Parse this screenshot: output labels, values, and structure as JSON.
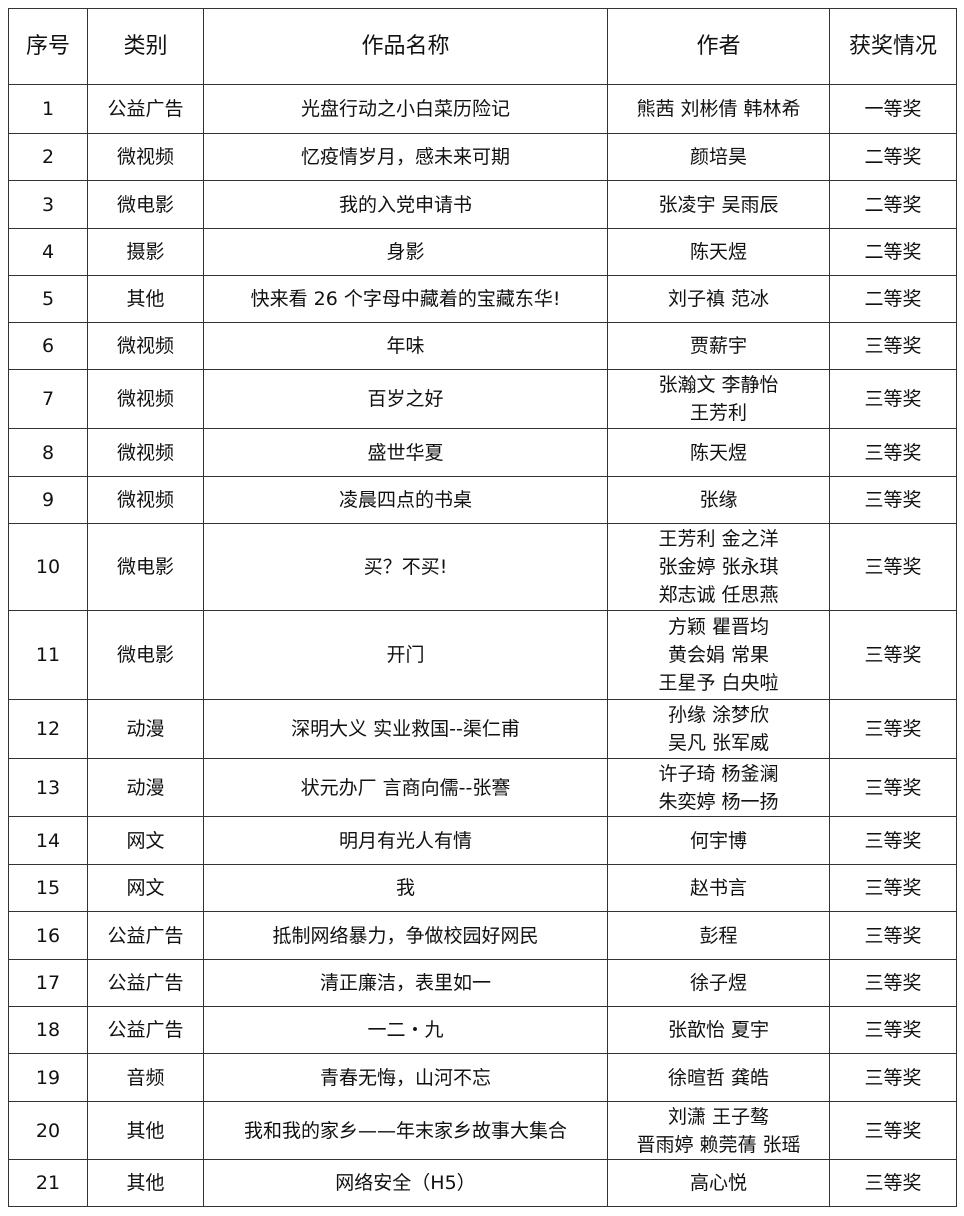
{
  "headers": [
    "序号",
    "类别",
    "作品名称",
    "作者",
    "获奖情况"
  ],
  "rows": [
    {
      "no": "1",
      "category": "公益广告",
      "title": "光盘行动之小白菜历险记",
      "authors": [
        "熊茜 刘彬倩 韩林希"
      ],
      "award": "一等奖"
    },
    {
      "no": "2",
      "category": "微视频",
      "title": "忆疫情岁月，感未来可期",
      "authors": [
        "颜培昊"
      ],
      "award": "二等奖"
    },
    {
      "no": "3",
      "category": "微电影",
      "title": "我的入党申请书",
      "authors": [
        "张凌宇 吴雨辰"
      ],
      "award": "二等奖"
    },
    {
      "no": "4",
      "category": "摄影",
      "title": "身影",
      "authors": [
        "陈天煜"
      ],
      "award": "二等奖"
    },
    {
      "no": "5",
      "category": "其他",
      "title": "快来看 26 个字母中藏着的宝藏东华!",
      "authors": [
        "刘子禛 范冰"
      ],
      "award": "二等奖"
    },
    {
      "no": "6",
      "category": "微视频",
      "title": "年味",
      "authors": [
        "贾薪宇"
      ],
      "award": "三等奖"
    },
    {
      "no": "7",
      "category": "微视频",
      "title": "百岁之好",
      "authors": [
        "张瀚文 李静怡",
        "王芳利"
      ],
      "award": "三等奖"
    },
    {
      "no": "8",
      "category": "微视频",
      "title": "盛世华夏",
      "authors": [
        "陈天煜"
      ],
      "award": "三等奖"
    },
    {
      "no": "9",
      "category": "微视频",
      "title": "凌晨四点的书桌",
      "authors": [
        "张缘"
      ],
      "award": "三等奖"
    },
    {
      "no": "10",
      "category": "微电影",
      "title": "买？不买!",
      "authors": [
        "王芳利 金之洋",
        "张金婷 张永琪",
        "郑志诚 任思燕"
      ],
      "award": "三等奖"
    },
    {
      "no": "11",
      "category": "微电影",
      "title": "开门",
      "authors": [
        "方颖 瞿晋均",
        "黄会娟 常果",
        "王星予 白央啦"
      ],
      "award": "三等奖"
    },
    {
      "no": "12",
      "category": "动漫",
      "title": "深明大义 实业救国--渠仁甫",
      "authors": [
        "孙缘 涂梦欣",
        "吴凡 张军威"
      ],
      "award": "三等奖"
    },
    {
      "no": "13",
      "category": "动漫",
      "title": "状元办厂 言商向儒--张謇",
      "authors": [
        "许子琦 杨釜澜",
        "朱奕婷 杨一扬"
      ],
      "award": "三等奖"
    },
    {
      "no": "14",
      "category": "网文",
      "title": "明月有光人有情",
      "authors": [
        "何宇博"
      ],
      "award": "三等奖"
    },
    {
      "no": "15",
      "category": "网文",
      "title": "我",
      "authors": [
        "赵书言"
      ],
      "award": "三等奖"
    },
    {
      "no": "16",
      "category": "公益广告",
      "title": "抵制网络暴力，争做校园好网民",
      "authors": [
        "彭程"
      ],
      "award": "三等奖"
    },
    {
      "no": "17",
      "category": "公益广告",
      "title": "清正廉洁，表里如一",
      "authors": [
        "徐子煜"
      ],
      "award": "三等奖"
    },
    {
      "no": "18",
      "category": "公益广告",
      "title": "一二・九",
      "authors": [
        "张歆怡 夏宇"
      ],
      "award": "三等奖"
    },
    {
      "no": "19",
      "category": "音频",
      "title": "青春无悔，山河不忘",
      "authors": [
        "徐暄哲 龚皓"
      ],
      "award": "三等奖"
    },
    {
      "no": "20",
      "category": "其他",
      "title": "我和我的家乡——年末家乡故事大集合",
      "authors": [
        "刘潇 王子骜",
        "晋雨婷 赖莞蒨 张瑶"
      ],
      "award": "三等奖"
    },
    {
      "no": "21",
      "category": "其他",
      "title": "网络安全（H5）",
      "authors": [
        "高心悦"
      ],
      "award": "三等奖"
    }
  ]
}
